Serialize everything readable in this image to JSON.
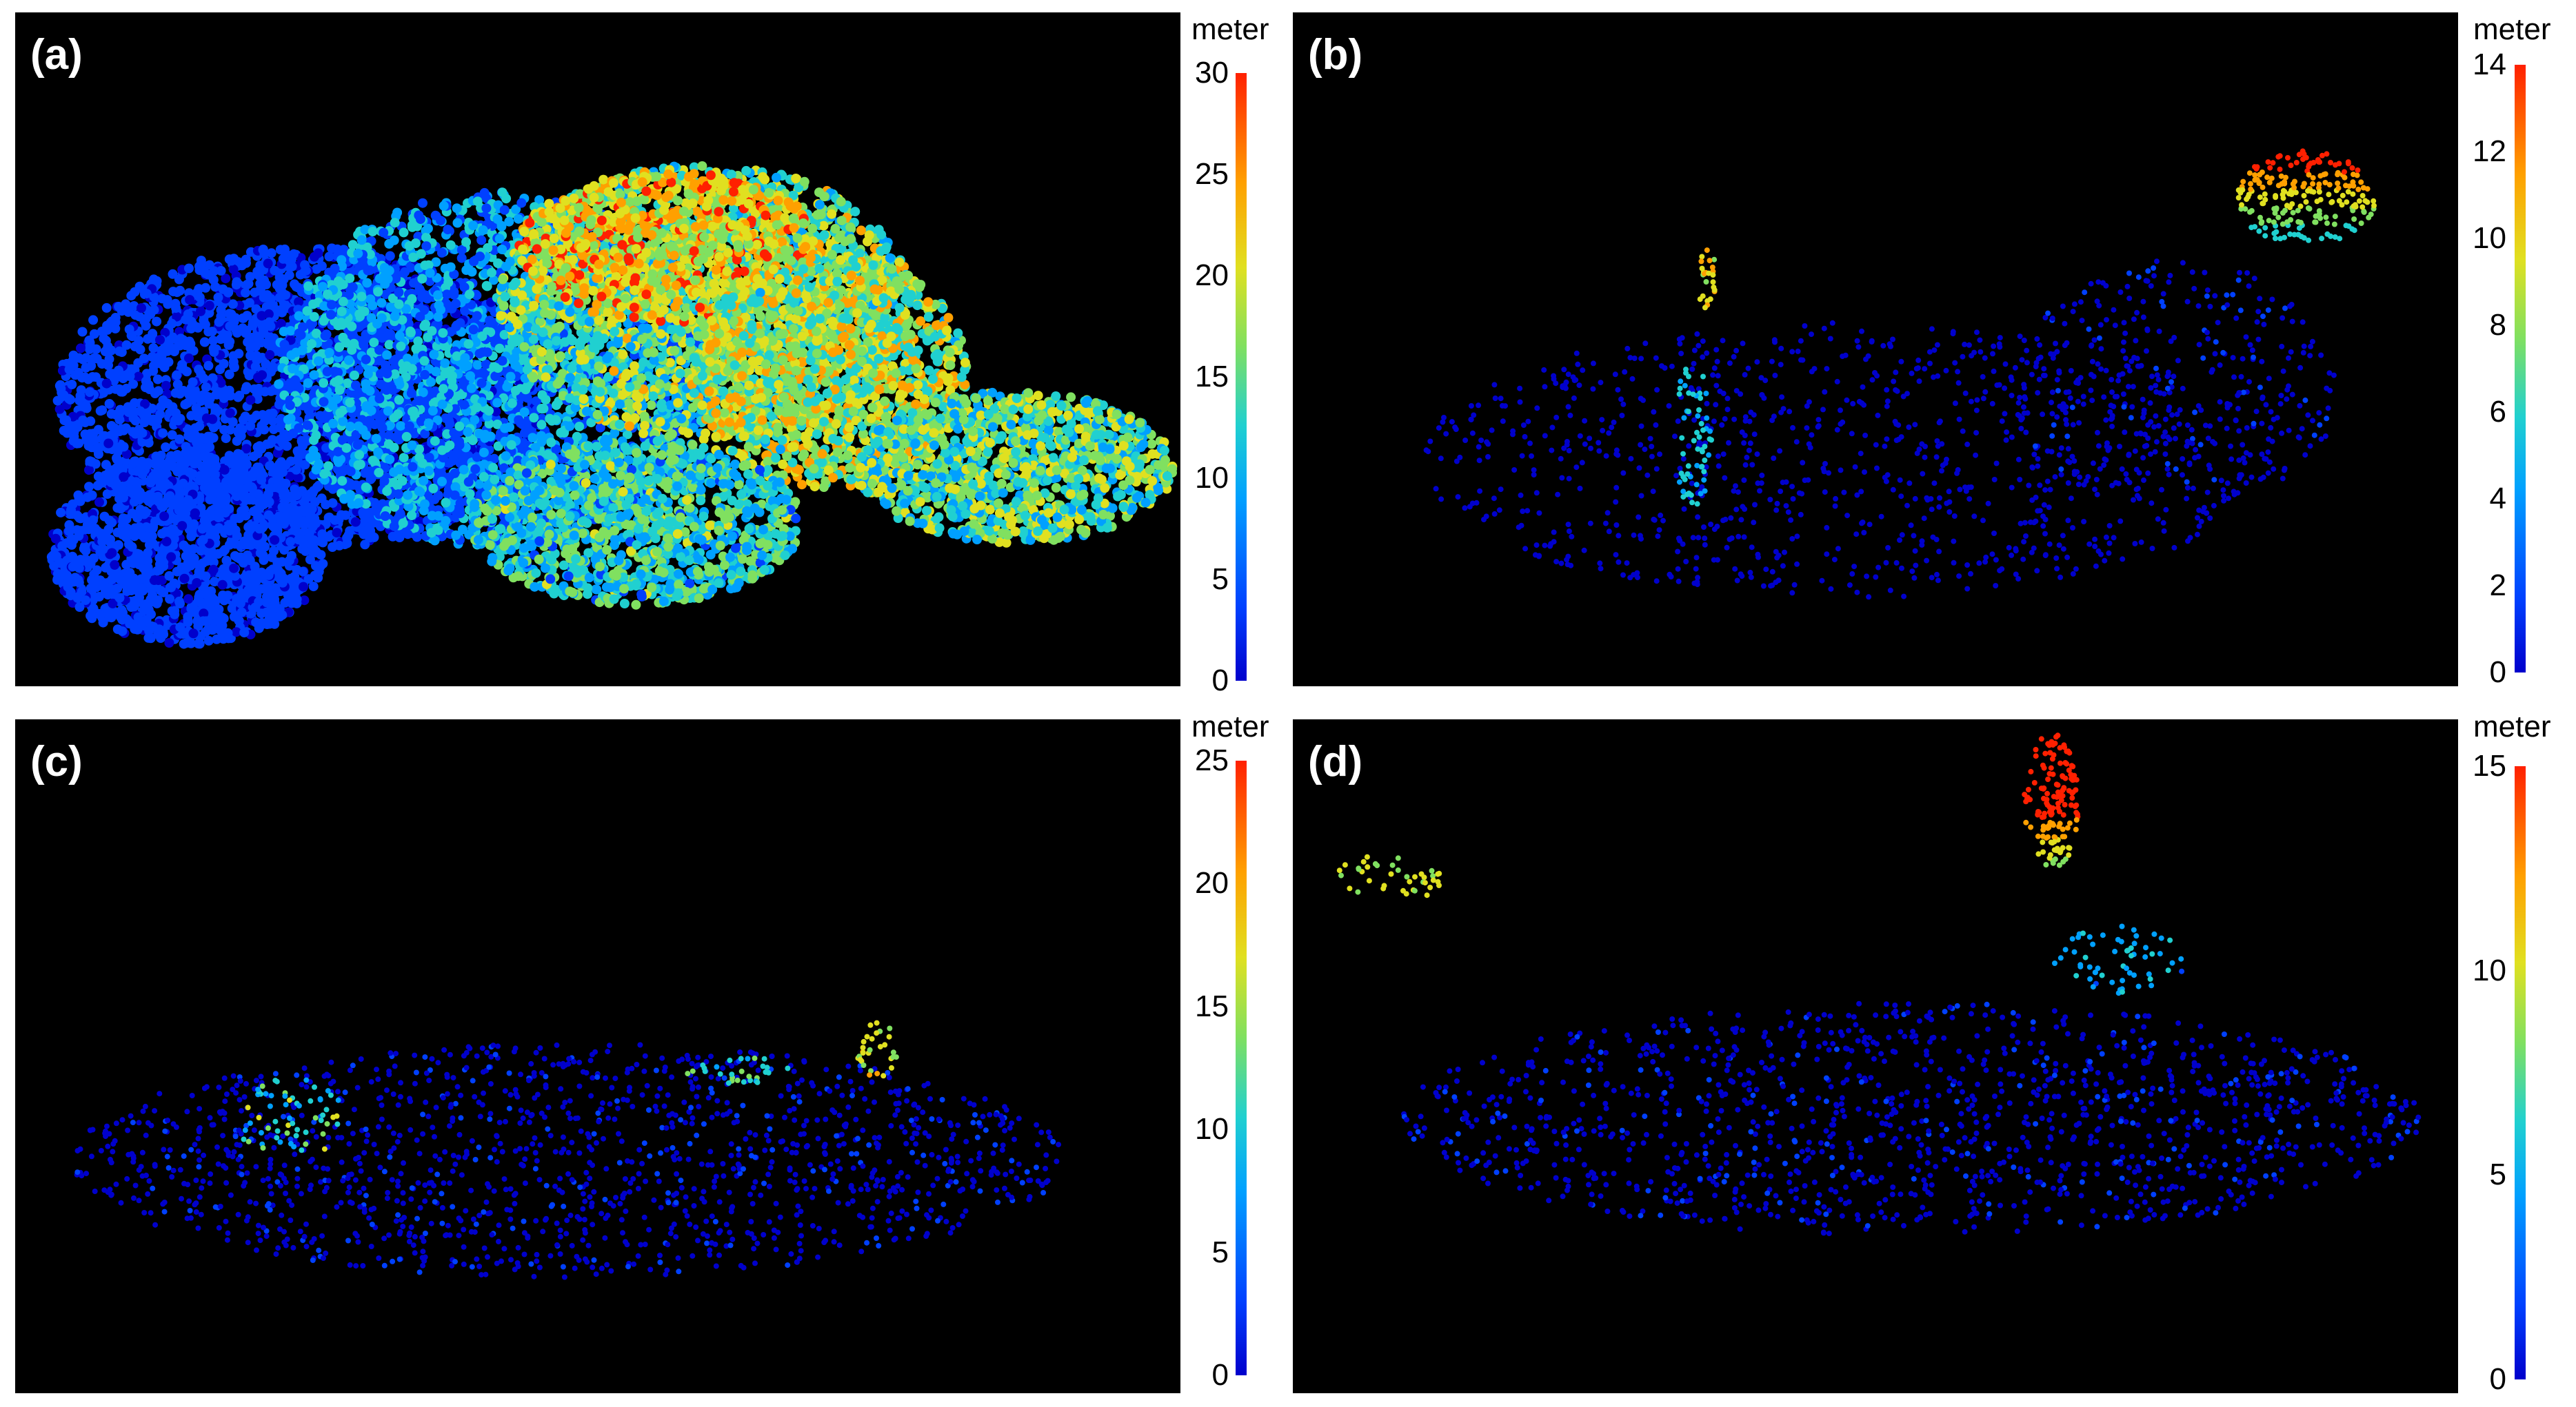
{
  "figure": {
    "panels": [
      {
        "label": "(a)",
        "unit": "meter",
        "ticks": [
          "0",
          "5",
          "10",
          "15",
          "20",
          "25",
          "30"
        ]
      },
      {
        "label": "(b)",
        "unit": "meter",
        "ticks": [
          "0",
          "2",
          "4",
          "6",
          "8",
          "10",
          "12",
          "14"
        ]
      },
      {
        "label": "(c)",
        "unit": "meter",
        "ticks": [
          "0",
          "5",
          "10",
          "15",
          "20",
          "25"
        ]
      },
      {
        "label": "(d)",
        "unit": "meter",
        "ticks": [
          "0",
          "5",
          "10",
          "15"
        ]
      }
    ],
    "colormap": [
      "#0000cc",
      "#0040ff",
      "#00a0ff",
      "#20d0d0",
      "#80e060",
      "#e0e020",
      "#ffa000",
      "#ff2000"
    ]
  }
}
